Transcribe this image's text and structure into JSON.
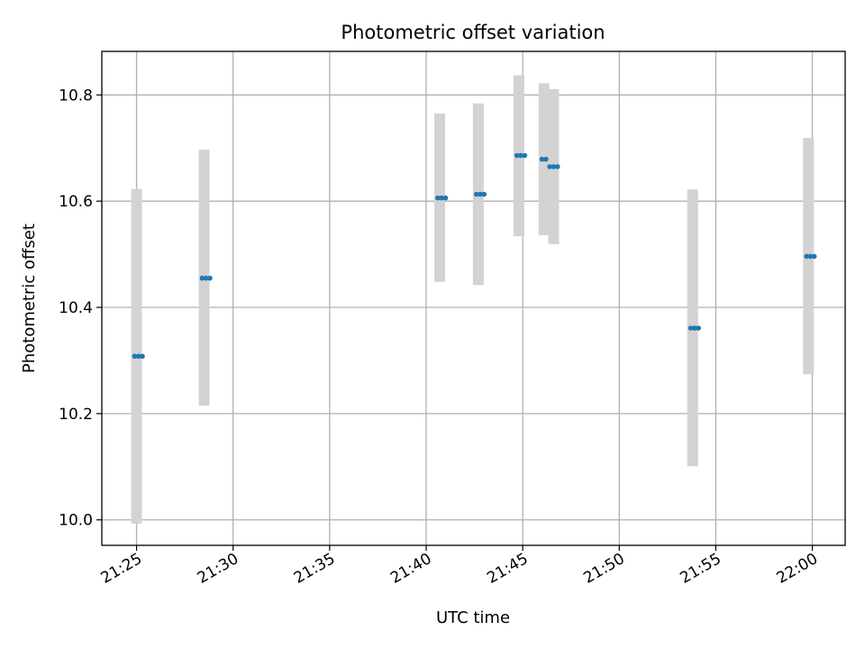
{
  "chart_data": {
    "type": "scatter",
    "title": "Photometric offset variation",
    "xlabel": "UTC time",
    "ylabel": "Photometric offset",
    "x_tick_labels": [
      "21:25",
      "21:30",
      "21:35",
      "21:40",
      "21:45",
      "21:50",
      "21:55",
      "22:00"
    ],
    "x_tick_minutes": [
      1285,
      1290,
      1295,
      1300,
      1305,
      1310,
      1315,
      1320
    ],
    "y_ticks": [
      10.0,
      10.2,
      10.4,
      10.6,
      10.8
    ],
    "y_tick_labels": [
      "10.0",
      "10.2",
      "10.4",
      "10.6",
      "10.8"
    ],
    "xlim": [
      "21:23:12",
      "22:01:42"
    ],
    "ylim": [
      9.952,
      10.882
    ],
    "grid": true,
    "colors": {
      "point": "#1f77b4",
      "error_band": "#d3d3d3",
      "grid": "#b0b0b0"
    },
    "points": [
      {
        "time": "21:25:00",
        "times": [
          "21:24:54",
          "21:25:06",
          "21:25:18"
        ],
        "y": 10.308,
        "ylow": 9.993,
        "yhigh": 10.623
      },
      {
        "time": "21:28:30",
        "times": [
          "21:28:24",
          "21:28:36",
          "21:28:48"
        ],
        "y": 10.455,
        "ylow": 10.215,
        "yhigh": 10.697
      },
      {
        "time": "21:40:42",
        "times": [
          "21:40:36",
          "21:40:48",
          "21:41:00"
        ],
        "y": 10.606,
        "ylow": 10.448,
        "yhigh": 10.765
      },
      {
        "time": "21:42:42",
        "times": [
          "21:42:36",
          "21:42:48",
          "21:43:00"
        ],
        "y": 10.613,
        "ylow": 10.442,
        "yhigh": 10.784
      },
      {
        "time": "21:44:48",
        "times": [
          "21:44:42",
          "21:44:54",
          "21:45:06"
        ],
        "y": 10.686,
        "ylow": 10.534,
        "yhigh": 10.837
      },
      {
        "time": "21:46:06",
        "times": [
          "21:46:00",
          "21:46:12"
        ],
        "y": 10.679,
        "ylow": 10.536,
        "yhigh": 10.822
      },
      {
        "time": "21:46:36",
        "times": [
          "21:46:24",
          "21:46:36",
          "21:46:48"
        ],
        "y": 10.665,
        "ylow": 10.519,
        "yhigh": 10.811
      },
      {
        "time": "21:53:48",
        "times": [
          "21:53:42",
          "21:53:54",
          "21:54:06"
        ],
        "y": 10.361,
        "ylow": 10.101,
        "yhigh": 10.622
      },
      {
        "time": "21:59:48",
        "times": [
          "21:59:42",
          "21:59:54",
          "22:00:06"
        ],
        "y": 10.496,
        "ylow": 10.274,
        "yhigh": 10.719
      }
    ]
  }
}
